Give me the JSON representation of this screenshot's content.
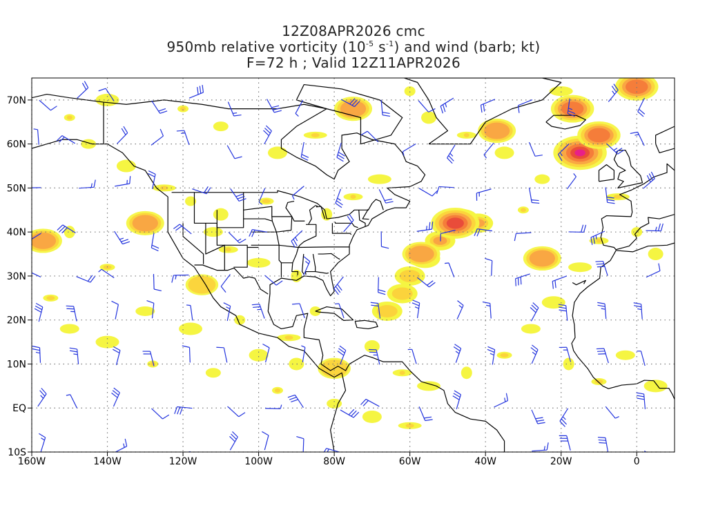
{
  "title": {
    "line1": "12Z08APR2026 cmc",
    "line2_pre": "950mb relative vorticity (10",
    "line2_exp1": "-5",
    "line2_mid": " s",
    "line2_exp2": "-1",
    "line2_post": ") and wind (barb; kt)",
    "line3": "F=72 h ; Valid 12Z11APR2026"
  },
  "map": {
    "lon_range": [
      -160,
      10
    ],
    "lat_range": [
      -10,
      75
    ],
    "lat_ticks": [
      {
        "lat": 70,
        "label": "70N"
      },
      {
        "lat": 60,
        "label": "60N"
      },
      {
        "lat": 50,
        "label": "50N"
      },
      {
        "lat": 40,
        "label": "40N"
      },
      {
        "lat": 30,
        "label": "30N"
      },
      {
        "lat": 20,
        "label": "20N"
      },
      {
        "lat": 10,
        "label": "10N"
      },
      {
        "lat": 0,
        "label": "EQ"
      },
      {
        "lat": -10,
        "label": "10S"
      }
    ],
    "lon_ticks": [
      {
        "lon": -160,
        "label": "160W"
      },
      {
        "lon": -140,
        "label": "140W"
      },
      {
        "lon": -120,
        "label": "120W"
      },
      {
        "lon": -100,
        "label": "100W"
      },
      {
        "lon": -80,
        "label": "80W"
      },
      {
        "lon": -60,
        "label": "60W"
      },
      {
        "lon": -40,
        "label": "40W"
      },
      {
        "lon": -20,
        "label": "20W"
      },
      {
        "lon": 0,
        "label": "0"
      }
    ],
    "colors": {
      "barb": "#2233dd",
      "coast": "#000000",
      "grid": "#777777",
      "shade_levels": [
        "#f5f542",
        "#fbd33c",
        "#f9a443",
        "#f47a3a",
        "#e84a3a",
        "#e81e8c"
      ]
    },
    "vorticity_features": [
      {
        "lon": -48,
        "lat": 42,
        "level": 4
      },
      {
        "lon": -57,
        "lat": 35,
        "level": 2
      },
      {
        "lon": -15,
        "lat": 58,
        "level": 5
      },
      {
        "lon": -10,
        "lat": 62,
        "level": 3
      },
      {
        "lon": -17,
        "lat": 68,
        "level": 3
      },
      {
        "lon": -130,
        "lat": 42,
        "level": 2
      },
      {
        "lon": -157,
        "lat": 38,
        "level": 2
      },
      {
        "lon": 0,
        "lat": 73,
        "level": 3
      },
      {
        "lon": -75,
        "lat": 68,
        "level": 2
      },
      {
        "lon": -37,
        "lat": 63,
        "level": 2
      },
      {
        "lon": -25,
        "lat": 34,
        "level": 2
      },
      {
        "lon": -80,
        "lat": 9,
        "level": 1
      },
      {
        "lon": -115,
        "lat": 28,
        "level": 1
      }
    ]
  }
}
